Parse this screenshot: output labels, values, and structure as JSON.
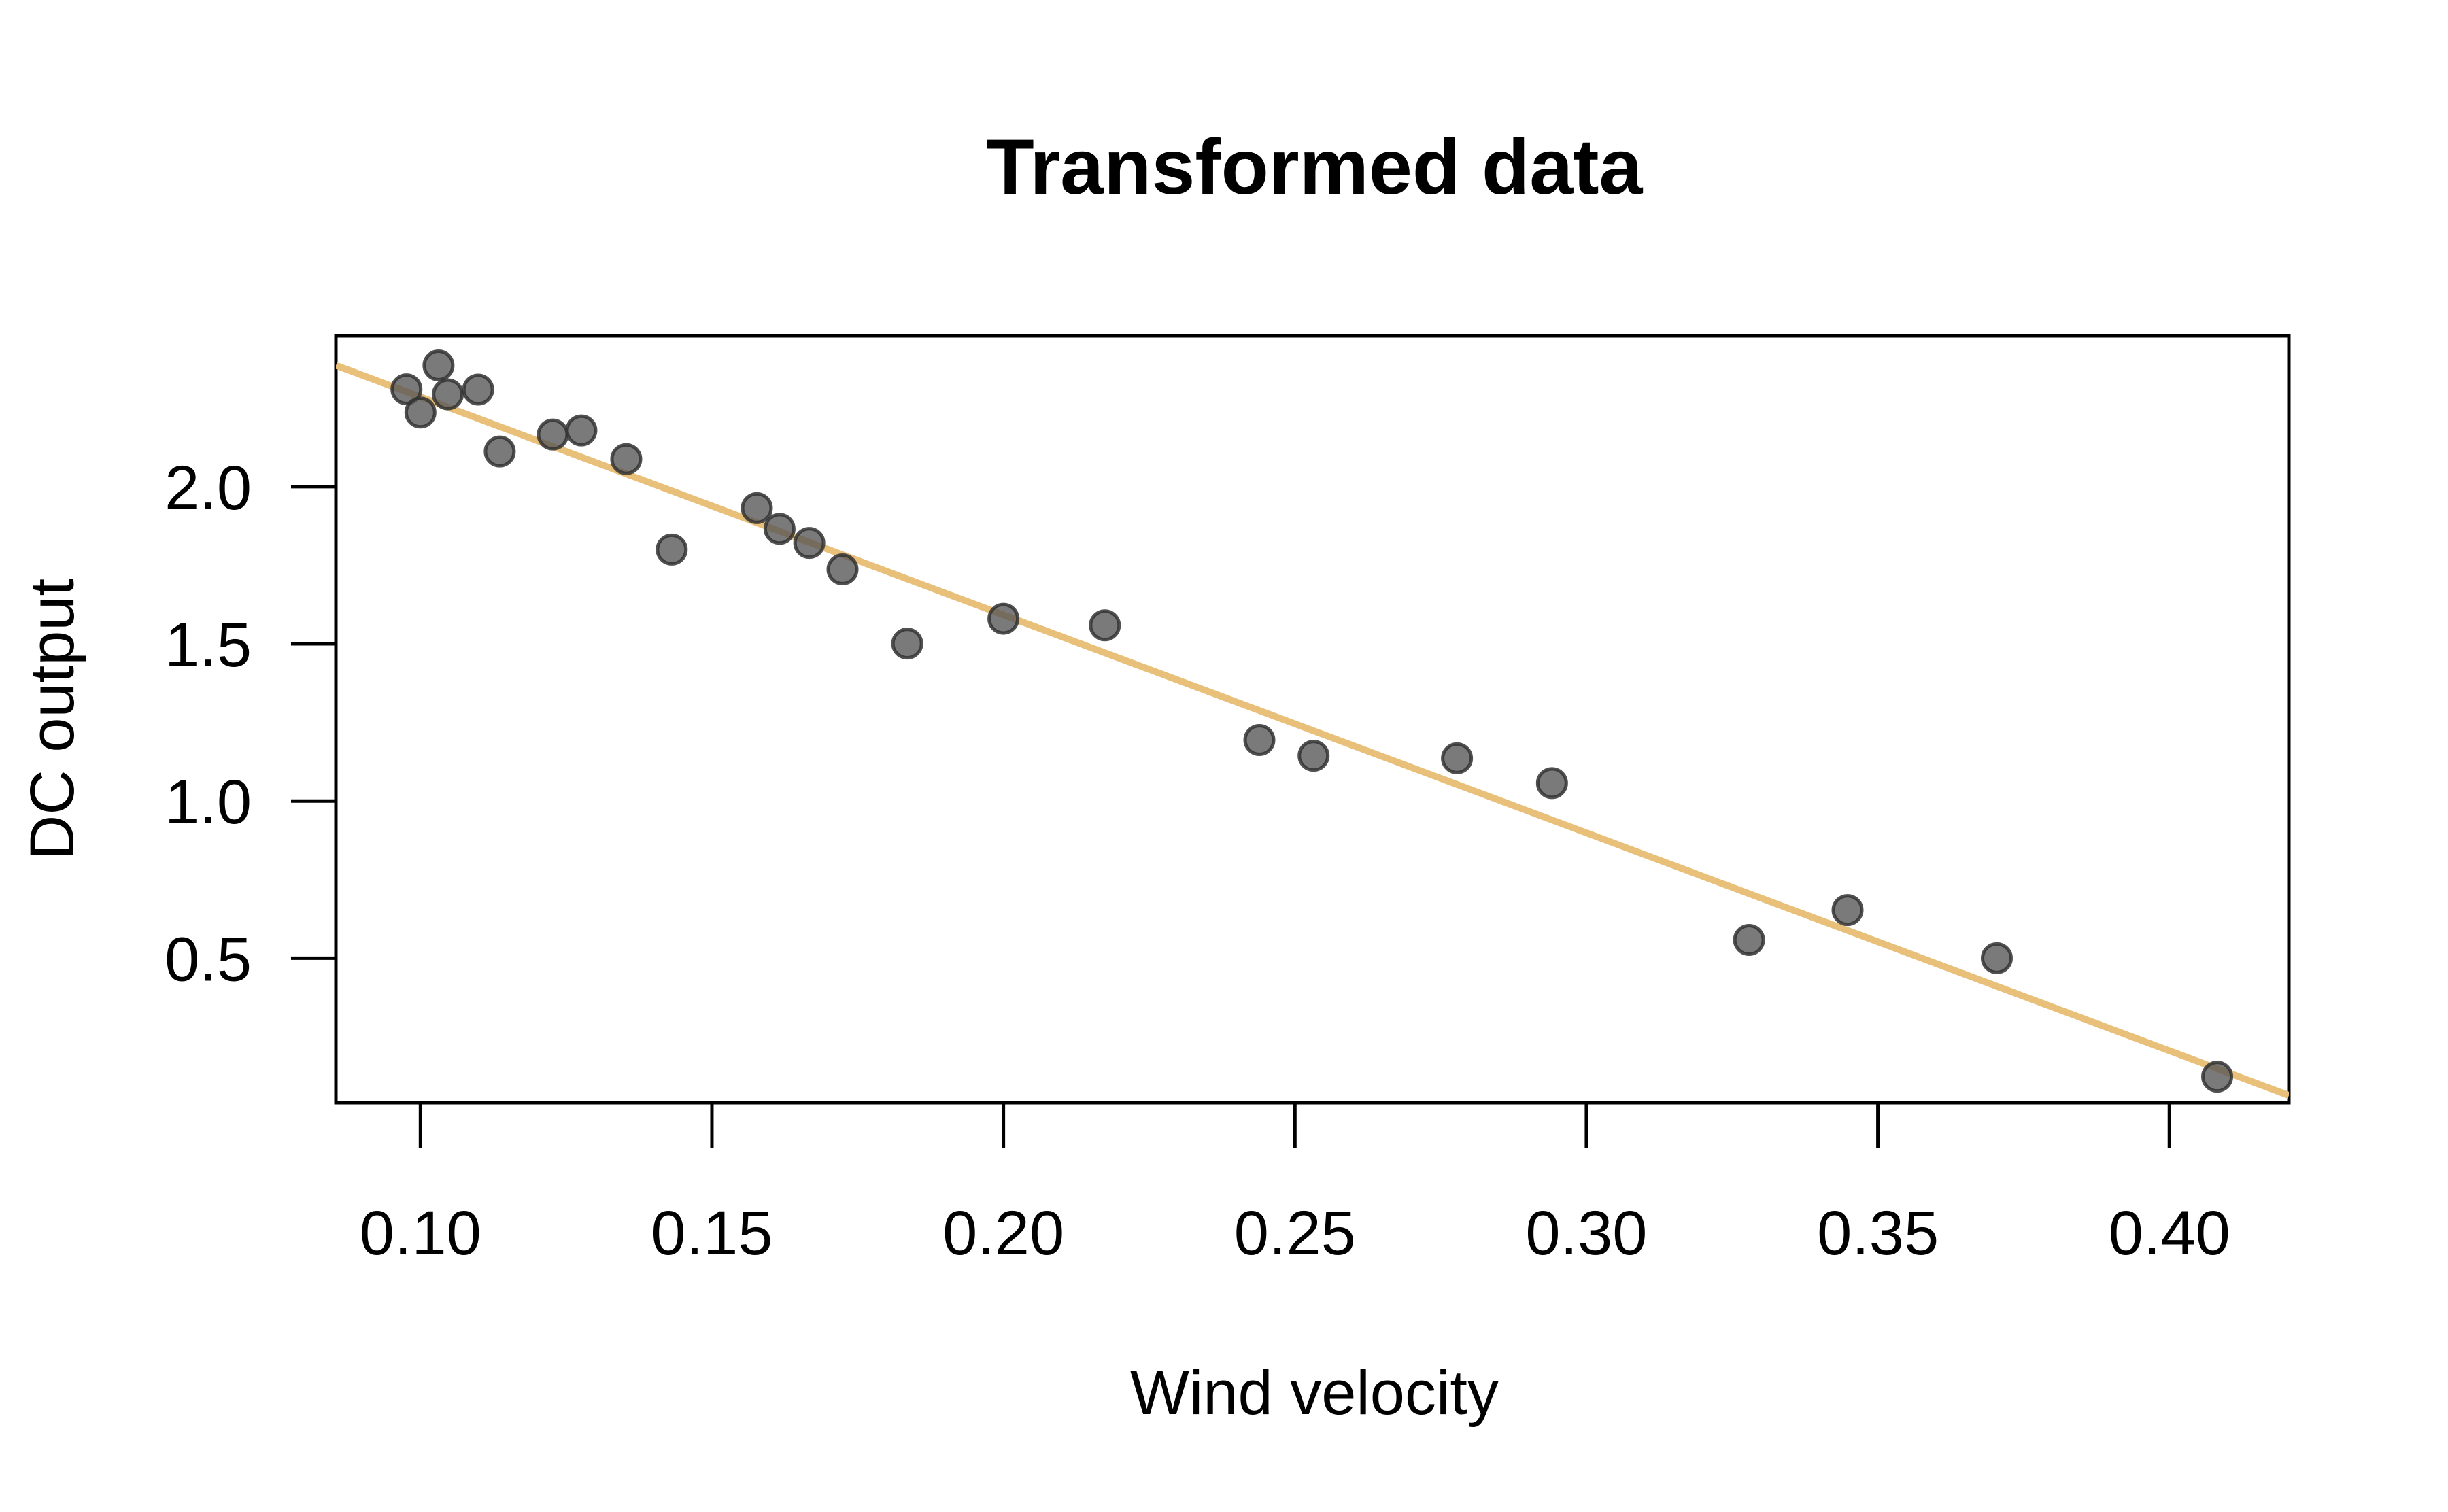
{
  "chart_data": {
    "type": "scatter",
    "title": "Transformed data",
    "xlabel": "Wind velocity",
    "ylabel": "DC output",
    "xlim": [
      0.0855,
      0.4205
    ],
    "ylim": [
      0.04,
      2.48
    ],
    "x_ticks": [
      0.1,
      0.15,
      0.2,
      0.25,
      0.3,
      0.35,
      0.4
    ],
    "x_tick_labels": [
      "0.10",
      "0.15",
      "0.20",
      "0.25",
      "0.30",
      "0.35",
      "0.40"
    ],
    "y_ticks": [
      0.5,
      1.0,
      1.5,
      2.0
    ],
    "y_tick_labels": [
      "0.5",
      "1.0",
      "1.5",
      "2.0"
    ],
    "grid": false,
    "legend": "none",
    "colors": {
      "points": "#555555",
      "point_edge": "#333333",
      "fit_line": "#E8C07A"
    },
    "series": [
      {
        "kind": "points",
        "x": [
          0.0976,
          0.1,
          0.1031,
          0.1047,
          0.1099,
          0.1136,
          0.1227,
          0.1276,
          0.1353,
          0.1431,
          0.1577,
          0.1616,
          0.1667,
          0.1724,
          0.1835,
          0.2,
          0.2174,
          0.2439,
          0.2532,
          0.2778,
          0.2941,
          0.3279,
          0.3448,
          0.3704,
          0.4082
        ],
        "y": [
          2.31,
          2.236,
          2.386,
          2.294,
          2.309,
          2.112,
          2.166,
          2.179,
          2.088,
          1.8,
          1.932,
          1.866,
          1.821,
          1.737,
          1.501,
          1.58,
          1.559,
          1.194,
          1.144,
          1.136,
          1.057,
          0.558,
          0.653,
          0.5,
          0.123
        ]
      },
      {
        "kind": "fit-line",
        "slope": -6.934,
        "intercept": 2.979
      }
    ]
  }
}
